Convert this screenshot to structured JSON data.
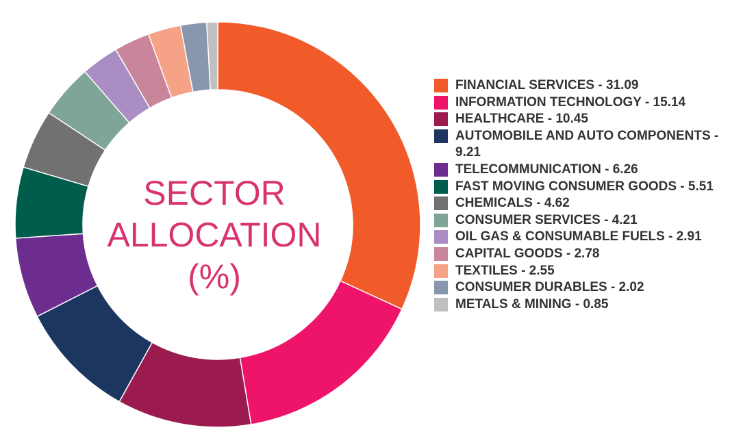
{
  "chart_data": {
    "type": "pie",
    "donut": true,
    "title_lines": [
      "SECTOR",
      "ALLOCATION",
      "(%)"
    ],
    "legend_position": "right",
    "slices": [
      {
        "label": "FINANCIAL SERVICES - 31.09",
        "value": 31.09,
        "color": "#f15a29"
      },
      {
        "label": "INFORMATION TECHNOLOGY - 15.14",
        "value": 15.14,
        "color": "#ed1469"
      },
      {
        "label": "HEALTHCARE - 10.45",
        "value": 10.45,
        "color": "#9b1b4e"
      },
      {
        "label": "AUTOMOBILE AND AUTO COMPONENTS - 9.21",
        "value": 9.21,
        "color": "#1c3660"
      },
      {
        "label": "TELECOMMUNICATION - 6.26",
        "value": 6.26,
        "color": "#6d2d8e"
      },
      {
        "label": "FAST MOVING CONSUMER GOODS - 5.51",
        "value": 5.51,
        "color": "#005c4b"
      },
      {
        "label": "CHEMICALS - 4.62",
        "value": 4.62,
        "color": "#717171"
      },
      {
        "label": "CONSUMER SERVICES - 4.21",
        "value": 4.21,
        "color": "#7ea595"
      },
      {
        "label": "OIL GAS & CONSUMABLE FUELS - 2.91",
        "value": 2.91,
        "color": "#a98dc3"
      },
      {
        "label": "CAPITAL GOODS - 2.78",
        "value": 2.78,
        "color": "#c9869a"
      },
      {
        "label": "TEXTILES - 2.55",
        "value": 2.55,
        "color": "#f6a287"
      },
      {
        "label": "CONSUMER DURABLES - 2.02",
        "value": 2.02,
        "color": "#8896ae"
      },
      {
        "label": "METALS & MINING - 0.85",
        "value": 0.85,
        "color": "#c0c0c0"
      }
    ]
  }
}
